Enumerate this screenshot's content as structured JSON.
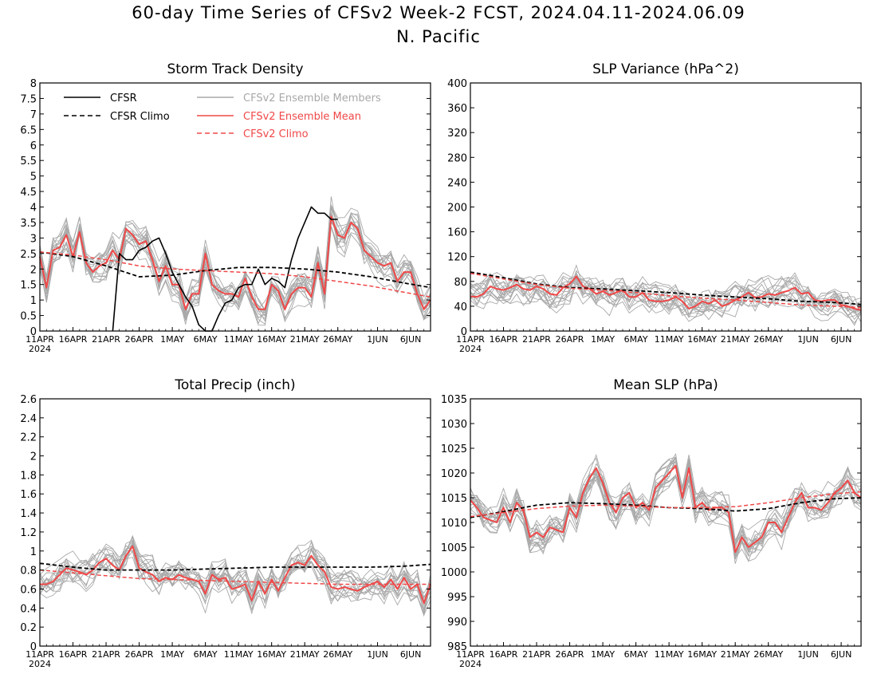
{
  "page": {
    "title": "60-day Time Series of CFSv2 Week-2 FCST, 2024.04.11-2024.06.09",
    "subtitle": "N. Pacific"
  },
  "legend": {
    "cfsr": "CFSR",
    "cfsr_climo": "CFSR Climo",
    "members": "CFSv2 Ensemble Members",
    "mean": "CFSv2 Ensemble Mean",
    "cfsv2_climo": "CFSv2 Climo"
  },
  "colors": {
    "cfsr": "#000000",
    "members": "#a8a8a8",
    "mean": "#f04848",
    "cfsv2_climo": "#f04848"
  },
  "x_ticks": {
    "labels": [
      "11APR",
      "16APR",
      "21APR",
      "26APR",
      "1MAY",
      "6MAY",
      "11MAY",
      "16MAY",
      "21MAY",
      "26MAY",
      "1JUN",
      "6JUN"
    ],
    "days": [
      0,
      5,
      10,
      15,
      20,
      25,
      30,
      35,
      40,
      45,
      51,
      56
    ],
    "year": "2024"
  },
  "chart_data": [
    {
      "type": "line",
      "title": "Storm Track Density",
      "xlim": [
        0,
        59
      ],
      "ylim": [
        0,
        8
      ],
      "y_ticks": [
        "0",
        "0.5",
        "1",
        "1.5",
        "2",
        "2.5",
        "3",
        "3.5",
        "4",
        "4.5",
        "5",
        "5.5",
        "6",
        "6.5",
        "7",
        "7.5",
        "8"
      ],
      "y_tick_values": [
        0,
        0.5,
        1,
        1.5,
        2,
        2.5,
        3,
        3.5,
        4,
        4.5,
        5,
        5.5,
        6,
        6.5,
        7,
        7.5,
        8
      ],
      "has_legend": true,
      "series": [
        {
          "name": "CFSv2 Ensemble Mean",
          "x": [
            0,
            1,
            2,
            3,
            4,
            5,
            6,
            7,
            8,
            9,
            10,
            11,
            12,
            13,
            14,
            15,
            16,
            17,
            18,
            19,
            20,
            21,
            22,
            23,
            24,
            25,
            26,
            27,
            28,
            29,
            30,
            31,
            32,
            33,
            34,
            35,
            36,
            37,
            38,
            39,
            40,
            41,
            42,
            43,
            44,
            45,
            46,
            47,
            48,
            49,
            50,
            51,
            52,
            53,
            54,
            55,
            56,
            57,
            58,
            59
          ],
          "values": [
            2.4,
            1.4,
            2.6,
            2.7,
            3.1,
            2.4,
            3.2,
            2.2,
            1.9,
            2.1,
            2.2,
            2.6,
            2.3,
            3.3,
            3.1,
            2.8,
            2.9,
            2.3,
            1.6,
            2.1,
            1.5,
            1.5,
            0.7,
            1.2,
            1.2,
            2.5,
            1.5,
            1.3,
            1.2,
            1.2,
            1.1,
            1.7,
            1.1,
            0.7,
            0.7,
            1.5,
            1.3,
            0.7,
            1.2,
            1.4,
            1.4,
            1.1,
            2.2,
            1.2,
            3.7,
            3.1,
            3.0,
            3.5,
            3.3,
            2.6,
            2.4,
            2.2,
            2.1,
            2.2,
            1.6,
            1.9,
            1.9,
            1.2,
            0.7,
            1.0
          ]
        },
        {
          "name": "CFSR",
          "x": [
            11,
            12,
            13,
            14,
            15,
            16,
            17,
            18,
            19,
            20,
            21,
            22,
            23,
            24,
            25,
            26,
            27,
            28,
            29,
            30,
            31,
            32,
            33,
            34,
            35,
            36,
            37,
            38,
            39,
            40,
            41,
            42,
            43,
            44,
            45
          ],
          "values": [
            0,
            2.5,
            2.3,
            2.3,
            2.6,
            2.7,
            2.9,
            3.0,
            2.5,
            1.9,
            1.5,
            1.1,
            0.8,
            0.2,
            0,
            0,
            0.5,
            0.9,
            1.0,
            1.4,
            1.5,
            1.5,
            2.0,
            1.5,
            1.7,
            1.6,
            1.4,
            2.3,
            3.0,
            3.5,
            4.0,
            3.8,
            3.8,
            3.6,
            3.6
          ]
        },
        {
          "name": "CFSR Climo",
          "x": [
            0,
            5,
            10,
            15,
            20,
            25,
            30,
            35,
            40,
            45,
            50,
            55,
            59
          ],
          "values": [
            2.55,
            2.4,
            2.1,
            1.75,
            1.8,
            1.95,
            2.05,
            2.05,
            2.0,
            1.9,
            1.75,
            1.55,
            1.4
          ]
        },
        {
          "name": "CFSv2 Climo",
          "x": [
            0,
            5,
            10,
            15,
            20,
            25,
            30,
            35,
            40,
            45,
            50,
            55,
            59
          ],
          "values": [
            2.55,
            2.45,
            2.3,
            2.1,
            2.0,
            1.95,
            1.9,
            1.85,
            1.75,
            1.6,
            1.45,
            1.25,
            1.1
          ]
        }
      ]
    },
    {
      "type": "line",
      "title": "SLP Variance (hPa^2)",
      "xlim": [
        0,
        59
      ],
      "ylim": [
        0,
        400
      ],
      "y_ticks": [
        "0",
        "40",
        "80",
        "120",
        "160",
        "200",
        "240",
        "280",
        "320",
        "360",
        "400"
      ],
      "y_tick_values": [
        0,
        40,
        80,
        120,
        160,
        200,
        240,
        280,
        320,
        360,
        400
      ],
      "has_legend": false,
      "series": [
        {
          "name": "CFSv2 Ensemble Mean",
          "x": [
            0,
            1,
            2,
            3,
            4,
            5,
            6,
            7,
            8,
            9,
            10,
            11,
            12,
            13,
            14,
            15,
            16,
            17,
            18,
            19,
            20,
            21,
            22,
            23,
            24,
            25,
            26,
            27,
            28,
            29,
            30,
            31,
            32,
            33,
            34,
            35,
            36,
            37,
            38,
            39,
            40,
            41,
            42,
            43,
            44,
            45,
            46,
            47,
            48,
            49,
            50,
            51,
            52,
            53,
            54,
            55,
            56,
            57,
            58,
            59
          ],
          "values": [
            56,
            55,
            60,
            72,
            68,
            66,
            70,
            75,
            68,
            66,
            72,
            68,
            60,
            58,
            70,
            76,
            88,
            72,
            68,
            60,
            64,
            58,
            62,
            66,
            55,
            55,
            62,
            50,
            48,
            48,
            50,
            55,
            48,
            36,
            40,
            48,
            44,
            50,
            40,
            44,
            50,
            55,
            62,
            54,
            55,
            60,
            58,
            62,
            65,
            70,
            60,
            62,
            50,
            48,
            50,
            50,
            42,
            40,
            36,
            34
          ]
        },
        {
          "name": "CFSR Climo",
          "x": [
            0,
            5,
            10,
            15,
            20,
            25,
            30,
            35,
            40,
            45,
            50,
            55,
            59
          ],
          "values": [
            95,
            86,
            76,
            70,
            68,
            65,
            62,
            58,
            55,
            52,
            48,
            46,
            43
          ]
        },
        {
          "name": "CFSv2 Climo",
          "x": [
            0,
            5,
            10,
            15,
            20,
            25,
            30,
            35,
            40,
            45,
            50,
            55,
            59
          ],
          "values": [
            93,
            84,
            75,
            69,
            66,
            62,
            57,
            53,
            50,
            46,
            42,
            40,
            38
          ]
        }
      ]
    },
    {
      "type": "line",
      "title": "Total Precip (inch)",
      "xlim": [
        0,
        59
      ],
      "ylim": [
        0,
        2.6
      ],
      "y_ticks": [
        "0",
        "0.2",
        "0.4",
        "0.6",
        "0.8",
        "1",
        "1.2",
        "1.4",
        "1.6",
        "1.8",
        "2",
        "2.2",
        "2.4",
        "2.6"
      ],
      "y_tick_values": [
        0,
        0.2,
        0.4,
        0.6,
        0.8,
        1,
        1.2,
        1.4,
        1.6,
        1.8,
        2,
        2.2,
        2.4,
        2.6
      ],
      "has_legend": false,
      "series": [
        {
          "name": "CFSv2 Ensemble Mean",
          "x": [
            0,
            1,
            2,
            3,
            4,
            5,
            6,
            7,
            8,
            9,
            10,
            11,
            12,
            13,
            14,
            15,
            16,
            17,
            18,
            19,
            20,
            21,
            22,
            23,
            24,
            25,
            26,
            27,
            28,
            29,
            30,
            31,
            32,
            33,
            34,
            35,
            36,
            37,
            38,
            39,
            40,
            41,
            42,
            43,
            44,
            45,
            46,
            47,
            48,
            49,
            50,
            51,
            52,
            53,
            54,
            55,
            56,
            57,
            58,
            59
          ],
          "values": [
            0.65,
            0.65,
            0.68,
            0.75,
            0.82,
            0.8,
            0.78,
            0.75,
            0.8,
            0.88,
            0.92,
            0.85,
            0.8,
            0.95,
            1.05,
            0.82,
            0.78,
            0.75,
            0.68,
            0.72,
            0.7,
            0.75,
            0.72,
            0.7,
            0.68,
            0.55,
            0.75,
            0.7,
            0.72,
            0.6,
            0.62,
            0.65,
            0.48,
            0.68,
            0.55,
            0.7,
            0.58,
            0.72,
            0.85,
            0.88,
            0.85,
            0.95,
            0.85,
            0.78,
            0.62,
            0.6,
            0.62,
            0.6,
            0.58,
            0.62,
            0.65,
            0.68,
            0.62,
            0.7,
            0.6,
            0.72,
            0.6,
            0.65,
            0.45,
            0.65
          ]
        },
        {
          "name": "CFSR Climo",
          "x": [
            0,
            5,
            10,
            15,
            20,
            25,
            30,
            35,
            40,
            45,
            50,
            55,
            59
          ],
          "values": [
            0.87,
            0.83,
            0.8,
            0.8,
            0.8,
            0.81,
            0.82,
            0.83,
            0.83,
            0.83,
            0.83,
            0.84,
            0.86
          ]
        },
        {
          "name": "CFSv2 Climo",
          "x": [
            0,
            5,
            10,
            15,
            20,
            25,
            30,
            35,
            40,
            45,
            50,
            55,
            59
          ],
          "values": [
            0.8,
            0.77,
            0.74,
            0.71,
            0.7,
            0.69,
            0.68,
            0.67,
            0.66,
            0.65,
            0.65,
            0.65,
            0.65
          ]
        }
      ]
    },
    {
      "type": "line",
      "title": "Mean SLP (hPa)",
      "xlim": [
        0,
        59
      ],
      "ylim": [
        985,
        1035
      ],
      "y_ticks": [
        "985",
        "990",
        "995",
        "1000",
        "1005",
        "1010",
        "1015",
        "1020",
        "1025",
        "1030",
        "1035"
      ],
      "y_tick_values": [
        985,
        990,
        995,
        1000,
        1005,
        1010,
        1015,
        1020,
        1025,
        1030,
        1035
      ],
      "has_legend": false,
      "series": [
        {
          "name": "CFSv2 Ensemble Mean",
          "x": [
            0,
            1,
            2,
            3,
            4,
            5,
            6,
            7,
            8,
            9,
            10,
            11,
            12,
            13,
            14,
            15,
            16,
            17,
            18,
            19,
            20,
            21,
            22,
            23,
            24,
            25,
            26,
            27,
            28,
            29,
            30,
            31,
            32,
            33,
            34,
            35,
            36,
            37,
            38,
            39,
            40,
            41,
            42,
            43,
            44,
            45,
            46,
            47,
            48,
            49,
            50,
            51,
            52,
            53,
            54,
            55,
            56,
            57,
            58,
            59
          ],
          "values": [
            1014.5,
            1013,
            1011,
            1010.5,
            1010,
            1013,
            1010,
            1014,
            1012.5,
            1007,
            1008,
            1007,
            1009,
            1008.5,
            1008,
            1013,
            1011,
            1016,
            1019,
            1021,
            1018,
            1014,
            1012,
            1015,
            1016,
            1013,
            1014,
            1012.5,
            1017,
            1018.5,
            1020,
            1021.5,
            1015,
            1021,
            1013,
            1014,
            1012.5,
            1013,
            1013,
            1012,
            1004,
            1007,
            1005,
            1006,
            1007,
            1010,
            1010,
            1008,
            1011,
            1014,
            1016,
            1013,
            1013,
            1012.5,
            1014,
            1016,
            1017,
            1018.5,
            1016,
            1015
          ]
        },
        {
          "name": "CFSR Climo",
          "x": [
            0,
            5,
            10,
            15,
            20,
            25,
            30,
            35,
            40,
            45,
            50,
            55,
            59
          ],
          "values": [
            1011,
            1012.2,
            1013.5,
            1014,
            1013.8,
            1013.5,
            1013,
            1012.8,
            1012.3,
            1012.8,
            1014,
            1014.8,
            1015
          ]
        },
        {
          "name": "CFSv2 Climo",
          "x": [
            0,
            5,
            10,
            15,
            20,
            25,
            30,
            35,
            40,
            45,
            50,
            55,
            59
          ],
          "values": [
            1011.2,
            1012,
            1012.8,
            1013.3,
            1013.5,
            1013.3,
            1013,
            1013,
            1013.2,
            1014,
            1015,
            1015.8,
            1016.2
          ]
        }
      ]
    }
  ]
}
